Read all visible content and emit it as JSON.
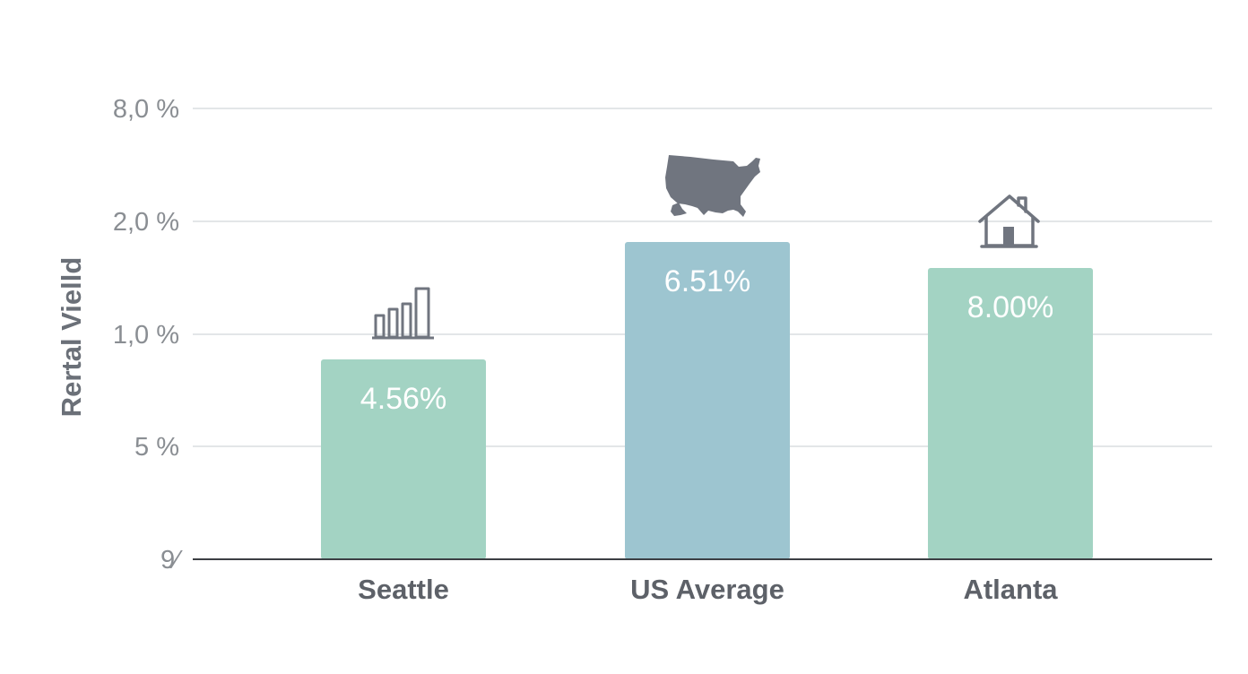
{
  "colors": {
    "seattle_bar": "#a3d3c3",
    "us_average_bar": "#9dc5d0",
    "atlanta_bar": "#a3d3c3",
    "gridline": "#e3e6e8",
    "baseline": "#3c3f44",
    "icon": "#70757f"
  },
  "chart_data": {
    "type": "bar",
    "ylabel": "Rertal Vielld",
    "y_tick_labels": [
      "9⁄",
      "5 %",
      "1,0 %",
      "2,0 %",
      "8,0 %"
    ],
    "grid": true,
    "categories": [
      "Seattle",
      "US Average",
      "Atlanta"
    ],
    "values": [
      4.56,
      6.51,
      8.0
    ],
    "value_labels": [
      "4.56%",
      "6.51%",
      "8.00%"
    ],
    "icons": [
      "bar-chart-icon",
      "usa-map-icon",
      "house-icon"
    ],
    "note": ""
  }
}
